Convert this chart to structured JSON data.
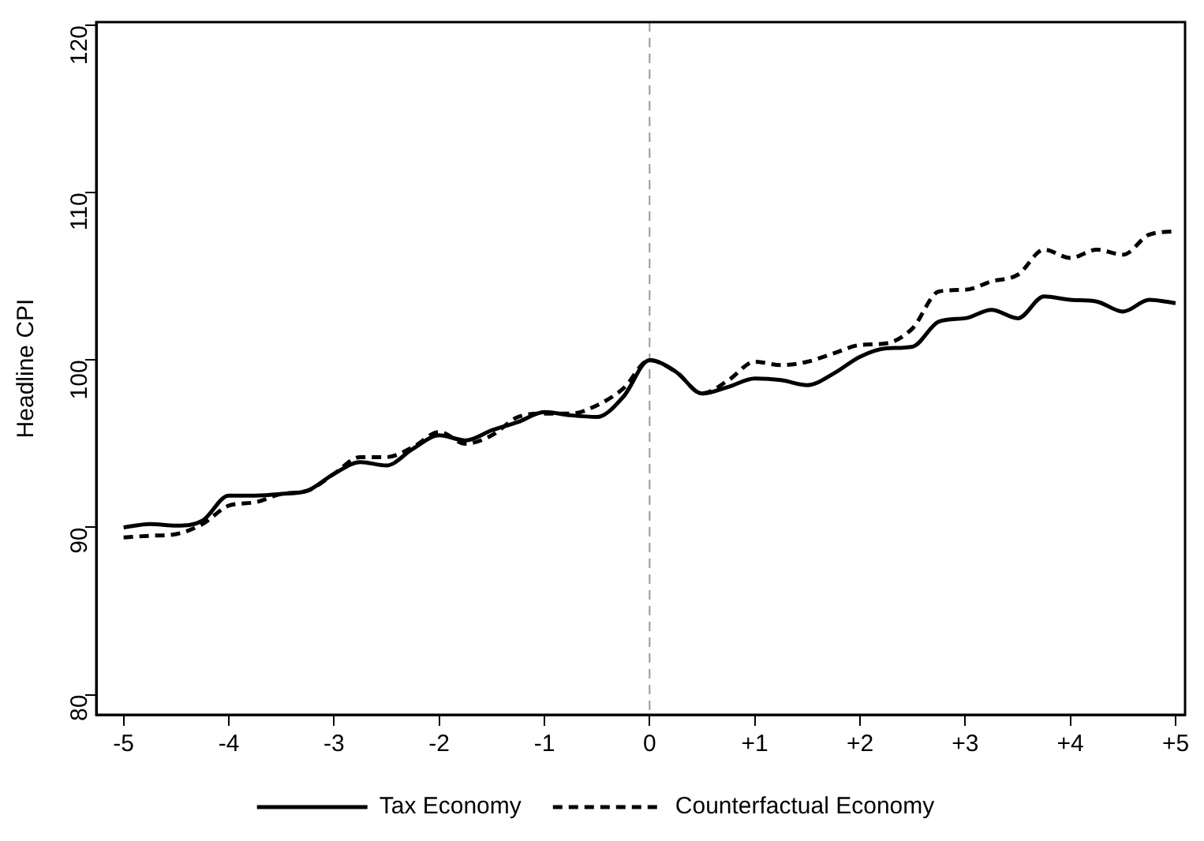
{
  "chart_data": {
    "type": "line",
    "ylabel": "Headline CPI",
    "xlim": [
      -5.26,
      5.09
    ],
    "ylim": [
      78.8,
      120.2
    ],
    "xticks": [
      -5,
      -4,
      -3,
      -2,
      -1,
      0,
      {
        "value": 1,
        "label": "+1"
      },
      {
        "value": 2,
        "label": "+2"
      },
      {
        "value": 3,
        "label": "+3"
      },
      {
        "value": 4,
        "label": "+4"
      },
      {
        "value": 5,
        "label": "+5"
      }
    ],
    "yticks": [
      80,
      90,
      100,
      110,
      120
    ],
    "x": [
      -5,
      -4.75,
      -4.5,
      -4.25,
      -4,
      -3.75,
      -3.5,
      -3.25,
      -3,
      -2.75,
      -2.5,
      -2.25,
      -2,
      -1.75,
      -1.5,
      -1.25,
      -1,
      -0.75,
      -0.5,
      -0.25,
      0,
      0.25,
      0.5,
      0.75,
      1,
      1.25,
      1.5,
      1.75,
      2,
      2.25,
      2.5,
      2.75,
      3,
      3.25,
      3.5,
      3.75,
      4,
      4.25,
      4.5,
      4.75,
      5
    ],
    "series": [
      {
        "name": "Tax Economy",
        "color": "#000000",
        "line_style": "solid",
        "values": [
          90.0,
          90.2,
          90.1,
          90.4,
          91.9,
          91.9,
          92.0,
          92.2,
          93.2,
          93.9,
          93.7,
          94.7,
          95.5,
          95.2,
          95.8,
          96.3,
          96.9,
          96.7,
          96.6,
          97.8,
          100.0,
          99.3,
          98.0,
          98.4,
          98.9,
          98.8,
          98.5,
          99.2,
          100.2,
          100.7,
          100.8,
          102.3,
          102.5,
          103.0,
          102.5,
          103.8,
          103.6,
          103.5,
          102.9,
          103.6,
          103.4
        ]
      },
      {
        "name": "Counterfactual Economy",
        "color": "#000000",
        "line_style": "dashed",
        "values": [
          89.4,
          89.5,
          89.6,
          90.2,
          91.3,
          91.5,
          92.0,
          92.2,
          93.2,
          94.2,
          94.2,
          94.8,
          95.7,
          95.0,
          95.5,
          96.6,
          96.8,
          96.8,
          97.3,
          98.3,
          100.0,
          99.3,
          98.0,
          98.8,
          99.9,
          99.7,
          99.9,
          100.4,
          100.9,
          101.0,
          101.9,
          104.1,
          104.2,
          104.7,
          105.1,
          106.6,
          106.1,
          106.6,
          106.3,
          107.5,
          107.7
        ]
      }
    ],
    "ref_lines": [
      {
        "axis": "x",
        "value": 0,
        "color": "#999999",
        "line_style": "dashed"
      }
    ],
    "grid": false,
    "legend": "bottom",
    "marker": "none"
  }
}
